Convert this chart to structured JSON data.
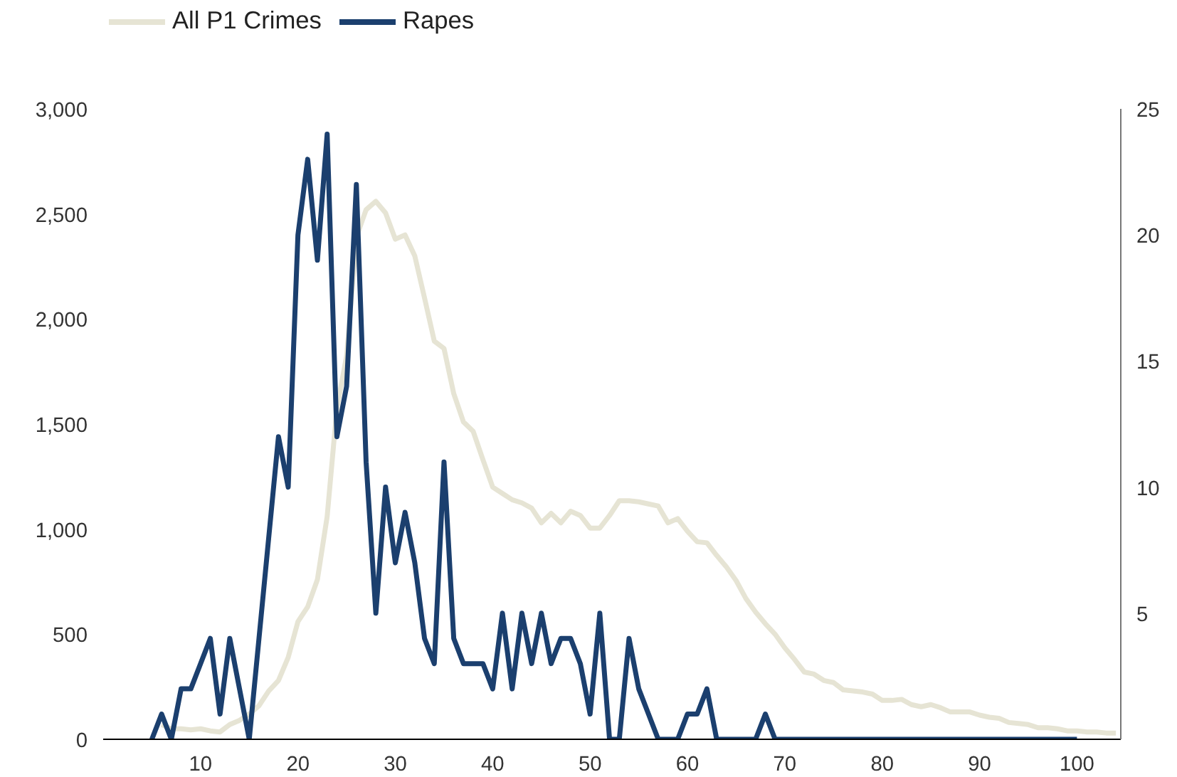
{
  "chart_data": {
    "type": "line",
    "legend": "top left",
    "grid": false,
    "marker": "none",
    "line_style": "solid",
    "xlim": [
      0,
      104.5
    ],
    "xticks": [
      10,
      20,
      30,
      40,
      50,
      60,
      70,
      80,
      90,
      100
    ],
    "ylim": [
      0,
      3000
    ],
    "yticks": [
      {
        "value": 0,
        "label": "0"
      },
      {
        "value": 500,
        "label": "500"
      },
      {
        "value": 1000,
        "label": "1,000"
      },
      {
        "value": 1500,
        "label": "1,500"
      },
      {
        "value": 2000,
        "label": "2,000"
      },
      {
        "value": 2500,
        "label": "2,500"
      },
      {
        "value": 3000,
        "label": "3,000"
      }
    ],
    "y2lim": [
      0,
      25
    ],
    "y2ticks": [
      5,
      10,
      15,
      20,
      25
    ],
    "series": [
      {
        "name": "All P1 Crimes",
        "color": "#e6e4d4",
        "x": [
          6,
          7,
          8,
          9,
          10,
          11,
          12,
          13,
          14,
          15,
          16,
          17,
          18,
          19,
          20,
          21,
          22,
          23,
          24,
          25,
          26,
          27,
          28,
          29,
          30,
          31,
          32,
          33,
          34,
          35,
          36,
          37,
          38,
          39,
          40,
          41,
          42,
          43,
          44,
          45,
          46,
          47,
          48,
          49,
          50,
          51,
          52,
          53,
          54,
          55,
          56,
          57,
          58,
          59,
          60,
          61,
          62,
          63,
          64,
          65,
          66,
          67,
          68,
          69,
          70,
          71,
          72,
          73,
          74,
          75,
          76,
          77,
          78,
          79,
          80,
          81,
          82,
          83,
          84,
          85,
          86,
          87,
          88,
          89,
          90,
          91,
          92,
          93,
          94,
          95,
          96,
          97,
          98,
          99,
          100,
          101,
          102,
          103,
          104
        ],
        "values": [
          70,
          50,
          50,
          45,
          50,
          40,
          35,
          70,
          90,
          120,
          160,
          230,
          280,
          390,
          560,
          630,
          760,
          1060,
          1575,
          1825,
          2390,
          2520,
          2560,
          2505,
          2380,
          2400,
          2300,
          2100,
          1895,
          1860,
          1645,
          1510,
          1465,
          1330,
          1200,
          1170,
          1140,
          1125,
          1100,
          1030,
          1075,
          1030,
          1085,
          1065,
          1005,
          1005,
          1065,
          1135,
          1135,
          1130,
          1120,
          1110,
          1030,
          1050,
          990,
          940,
          935,
          875,
          820,
          755,
          670,
          605,
          550,
          500,
          435,
          380,
          320,
          310,
          280,
          270,
          235,
          230,
          225,
          215,
          185,
          185,
          190,
          165,
          155,
          165,
          150,
          130,
          130,
          130,
          115,
          105,
          100,
          80,
          75,
          70,
          55,
          55,
          50,
          40,
          40,
          35,
          35,
          30,
          30
        ]
      },
      {
        "name": "Rapes",
        "color": "#1b3f6e",
        "axis": "y2",
        "x": [
          5,
          6,
          7,
          8,
          9,
          10,
          11,
          12,
          13,
          14,
          15,
          16,
          17,
          18,
          19,
          20,
          21,
          22,
          23,
          24,
          25,
          26,
          27,
          28,
          29,
          30,
          31,
          32,
          33,
          34,
          35,
          36,
          37,
          38,
          39,
          40,
          41,
          42,
          43,
          44,
          45,
          46,
          47,
          48,
          49,
          50,
          51,
          52,
          53,
          54,
          55,
          56,
          57,
          58,
          59,
          60,
          61,
          62,
          63,
          64,
          65,
          66,
          67,
          68,
          69,
          70,
          71,
          72,
          73,
          74,
          75,
          76,
          77,
          78,
          79,
          80,
          81,
          82,
          83,
          84,
          85,
          86,
          87,
          88,
          89,
          90,
          91,
          92,
          93,
          94,
          95,
          96,
          97,
          98,
          99,
          100
        ],
        "values": [
          0,
          1,
          0,
          2,
          2,
          3,
          4,
          1,
          4,
          2,
          0,
          4,
          8,
          12,
          10,
          20,
          23,
          19,
          24,
          12,
          14,
          22,
          11,
          5,
          10,
          7,
          9,
          7,
          4,
          3,
          11,
          4,
          3,
          3,
          3,
          2,
          5,
          2,
          5,
          3,
          5,
          3,
          4,
          4,
          3,
          1,
          5,
          0,
          0,
          4,
          2,
          1,
          0,
          0,
          0,
          1,
          1,
          2,
          0,
          0,
          0,
          0,
          0,
          1,
          0,
          0,
          0,
          0,
          0,
          0,
          0,
          0,
          0,
          0,
          0,
          0,
          0,
          0,
          0,
          0,
          0,
          0,
          0,
          0,
          0,
          0,
          0,
          0,
          0,
          0,
          0,
          0,
          0,
          0,
          0,
          0
        ]
      }
    ]
  }
}
